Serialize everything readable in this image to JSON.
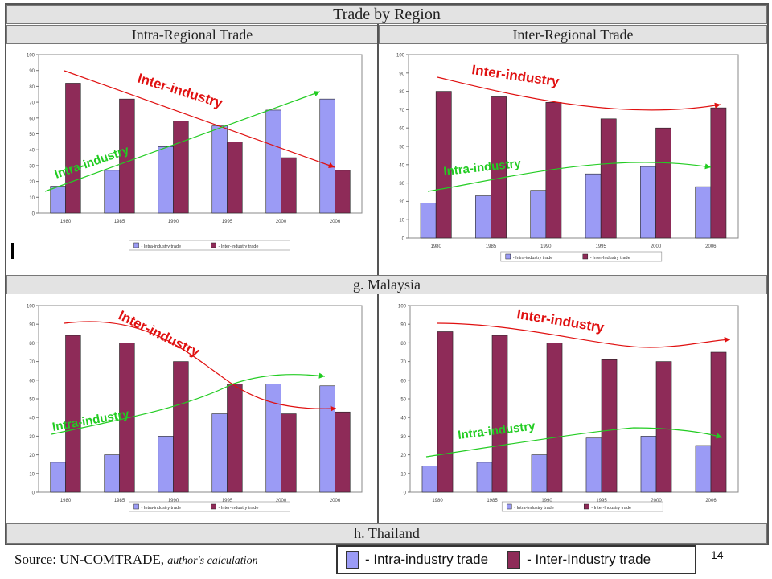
{
  "header": {
    "title": "Trade by Region",
    "left_heading": "Intra-Regional Trade",
    "right_heading": "Inter-Regional Trade"
  },
  "sections": [
    "g. Malaysia",
    "h. Thailand"
  ],
  "footer": {
    "source": "Source: UN-COMTRADE,",
    "source_note": "author's calculation",
    "legend_intra": "- Intra-industry trade",
    "legend_inter": "- Inter-Industry trade",
    "page_number": "14"
  },
  "colors": {
    "intra": "#9b9bf5",
    "inter": "#8e2b58",
    "arrow_inter": "#e01010",
    "arrow_intra": "#22cc22"
  },
  "chart_data": [
    {
      "type": "bar",
      "categories": [
        "1980",
        "1985",
        "1990",
        "1995",
        "2000",
        "2006"
      ],
      "series": [
        {
          "name": "- Intra-industry trade",
          "values": [
            17,
            27,
            42,
            55,
            65,
            72
          ]
        },
        {
          "name": "- Inter-Industry trade",
          "values": [
            82,
            72,
            58,
            45,
            35,
            27
          ]
        }
      ],
      "ylim": [
        0,
        100
      ],
      "yticks": [
        0,
        10,
        20,
        30,
        40,
        50,
        60,
        70,
        80,
        90,
        100
      ],
      "annotations": [
        "Inter-industry",
        "Intra-industry"
      ]
    },
    {
      "type": "bar",
      "categories": [
        "1980",
        "1985",
        "1990",
        "1995",
        "2000",
        "2006"
      ],
      "series": [
        {
          "name": "- Intra-industry trade",
          "values": [
            19,
            23,
            26,
            35,
            39,
            28
          ]
        },
        {
          "name": "- Inter-Industry trade",
          "values": [
            80,
            77,
            74,
            65,
            60,
            71
          ]
        }
      ],
      "ylim": [
        0,
        100
      ],
      "yticks": [
        0,
        10,
        20,
        30,
        40,
        50,
        60,
        70,
        80,
        90,
        100
      ],
      "annotations": [
        "Inter-industry",
        "Intra-industry"
      ]
    },
    {
      "type": "bar",
      "categories": [
        "1980",
        "1985",
        "1990",
        "1995",
        "2000",
        "2006"
      ],
      "series": [
        {
          "name": "- Intra-industry trade",
          "values": [
            16,
            20,
            30,
            42,
            58,
            57
          ]
        },
        {
          "name": "- Inter-Industry trade",
          "values": [
            84,
            80,
            70,
            58,
            42,
            43
          ]
        }
      ],
      "ylim": [
        0,
        100
      ],
      "yticks": [
        0,
        10,
        20,
        30,
        40,
        50,
        60,
        70,
        80,
        90,
        100
      ],
      "annotations": [
        "Inter-industry",
        "Intra-industry"
      ]
    },
    {
      "type": "bar",
      "categories": [
        "1980",
        "1985",
        "1990",
        "1995",
        "2000",
        "2006"
      ],
      "series": [
        {
          "name": "- Intra-industry trade",
          "values": [
            14,
            16,
            20,
            29,
            30,
            25
          ]
        },
        {
          "name": "- Inter-Industry trade",
          "values": [
            86,
            84,
            80,
            71,
            70,
            75
          ]
        }
      ],
      "ylim": [
        0,
        100
      ],
      "yticks": [
        0,
        10,
        20,
        30,
        40,
        50,
        60,
        70,
        80,
        90,
        100
      ],
      "annotations": [
        "Inter-industry",
        "Intra-industry"
      ]
    }
  ]
}
